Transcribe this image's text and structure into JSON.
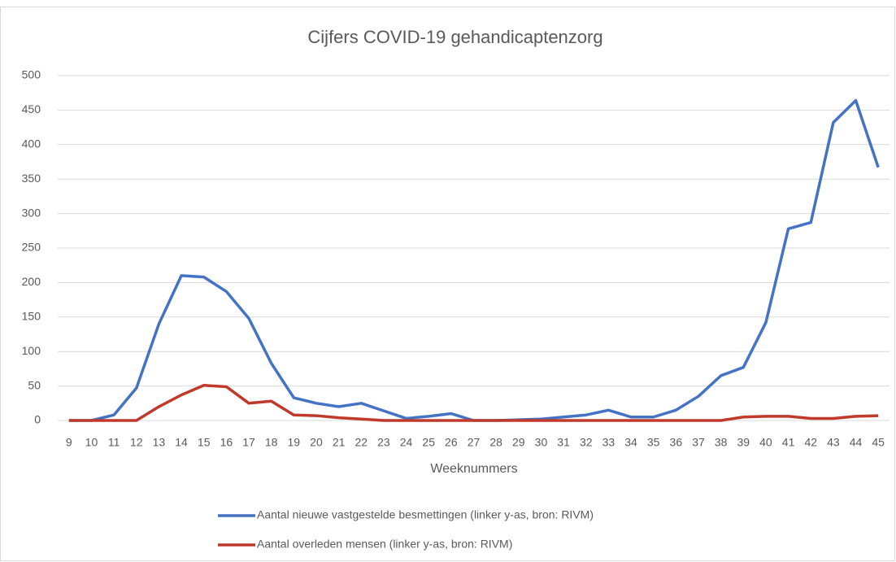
{
  "chart_data": {
    "type": "line",
    "title": "Cijfers COVID-19 gehandicaptenzorg",
    "x_label": "Weeknummers",
    "categories": [
      "9",
      "10",
      "11",
      "12",
      "13",
      "14",
      "15",
      "16",
      "17",
      "18",
      "19",
      "20",
      "21",
      "22",
      "23",
      "24",
      "25",
      "26",
      "27",
      "28",
      "29",
      "30",
      "31",
      "32",
      "33",
      "34",
      "35",
      "36",
      "37",
      "38",
      "39",
      "40",
      "41",
      "42",
      "43",
      "44",
      "45"
    ],
    "series": [
      {
        "name": "Aantal nieuwe vastgestelde besmettingen  (linker y-as, bron: RIVM)",
        "color": "#4472c4",
        "values": [
          0,
          0,
          8,
          47,
          140,
          210,
          208,
          187,
          148,
          83,
          33,
          25,
          20,
          25,
          14,
          3,
          6,
          10,
          0,
          0,
          1,
          2,
          5,
          8,
          15,
          5,
          5,
          15,
          35,
          65,
          77,
          142,
          278,
          287,
          432,
          464,
          367
        ]
      },
      {
        "name": "Aantal overleden mensen  (linker y-as, bron: RIVM)",
        "color": "#c0392b",
        "values": [
          0,
          0,
          0,
          0,
          20,
          37,
          51,
          49,
          25,
          28,
          8,
          7,
          4,
          2,
          0,
          0,
          0,
          0,
          0,
          0,
          0,
          0,
          0,
          0,
          0,
          0,
          0,
          0,
          0,
          0,
          5,
          6,
          6,
          3,
          3,
          6,
          7
        ]
      }
    ],
    "ylim": [
      0,
      500
    ],
    "yticks": [
      0,
      50,
      100,
      150,
      200,
      250,
      300,
      350,
      400,
      450,
      500
    ],
    "grid": true,
    "legend": "bottom"
  }
}
